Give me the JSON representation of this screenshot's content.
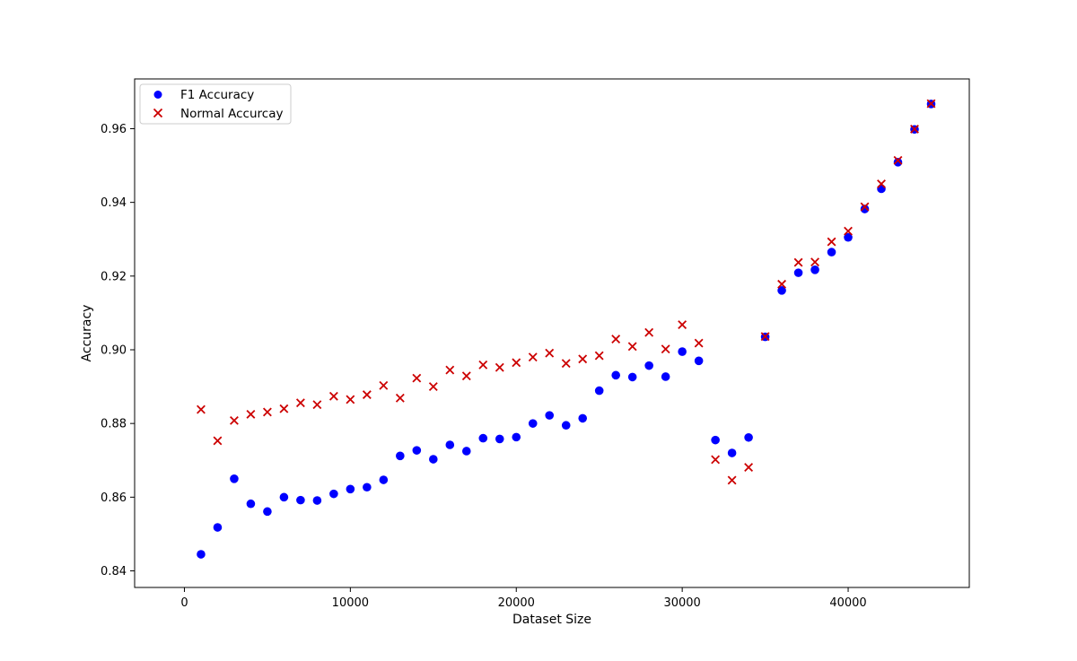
{
  "chart_data": {
    "type": "scatter",
    "title": "",
    "xlabel": "Dataset Size",
    "ylabel": "Accuracy",
    "xlim": [
      -3000,
      47300
    ],
    "ylim": [
      0.8355,
      0.9735
    ],
    "xticks": [
      0,
      10000,
      20000,
      30000,
      40000
    ],
    "xtick_labels": [
      "0",
      "10000",
      "20000",
      "30000",
      "40000"
    ],
    "yticks": [
      0.84,
      0.86,
      0.88,
      0.9,
      0.92,
      0.94,
      0.96
    ],
    "ytick_labels": [
      "0.84",
      "0.86",
      "0.88",
      "0.90",
      "0.92",
      "0.94",
      "0.96"
    ],
    "grid": false,
    "legend_position": "top-left",
    "series": [
      {
        "name": "F1 Accuracy",
        "marker": "circle",
        "color": "#0000ff",
        "x": [
          1000,
          2000,
          3000,
          4000,
          5000,
          6000,
          7000,
          8000,
          9000,
          10000,
          11000,
          12000,
          13000,
          14000,
          15000,
          16000,
          17000,
          18000,
          19000,
          20000,
          21000,
          22000,
          23000,
          24000,
          25000,
          26000,
          27000,
          28000,
          29000,
          30000,
          31000,
          32000,
          33000,
          34000,
          35000,
          36000,
          37000,
          38000,
          39000,
          40000,
          41000,
          42000,
          43000,
          44000,
          45000
        ],
        "y": [
          0.8445,
          0.8518,
          0.865,
          0.8582,
          0.8561,
          0.86,
          0.8592,
          0.8591,
          0.8609,
          0.8622,
          0.8627,
          0.8647,
          0.8712,
          0.8727,
          0.8703,
          0.8742,
          0.8725,
          0.876,
          0.8758,
          0.8763,
          0.88,
          0.8822,
          0.8795,
          0.8814,
          0.8889,
          0.8931,
          0.8926,
          0.8957,
          0.8927,
          0.8995,
          0.897,
          0.8755,
          0.872,
          0.8762,
          0.9035,
          0.9161,
          0.9209,
          0.9217,
          0.9265,
          0.9305,
          0.9382,
          0.9437,
          0.9509,
          0.9598,
          0.9667
        ]
      },
      {
        "name": "Normal Accurcay",
        "marker": "x",
        "color": "#cc0000",
        "x": [
          1000,
          2000,
          3000,
          4000,
          5000,
          6000,
          7000,
          8000,
          9000,
          10000,
          11000,
          12000,
          13000,
          14000,
          15000,
          16000,
          17000,
          18000,
          19000,
          20000,
          21000,
          22000,
          23000,
          24000,
          25000,
          26000,
          27000,
          28000,
          29000,
          30000,
          31000,
          32000,
          33000,
          34000,
          35000,
          36000,
          37000,
          38000,
          39000,
          40000,
          41000,
          42000,
          43000,
          44000,
          45000
        ],
        "y": [
          0.8838,
          0.8753,
          0.8808,
          0.8825,
          0.8831,
          0.884,
          0.8856,
          0.8851,
          0.8874,
          0.8865,
          0.8878,
          0.8903,
          0.8869,
          0.8923,
          0.89,
          0.8945,
          0.8929,
          0.8959,
          0.8952,
          0.8965,
          0.898,
          0.8991,
          0.8963,
          0.8975,
          0.8984,
          0.9029,
          0.9009,
          0.9047,
          0.9002,
          0.9068,
          0.9018,
          0.8702,
          0.8646,
          0.8681,
          0.9036,
          0.9178,
          0.9237,
          0.9238,
          0.9293,
          0.9322,
          0.9388,
          0.945,
          0.9514,
          0.9599,
          0.9668
        ]
      }
    ]
  }
}
